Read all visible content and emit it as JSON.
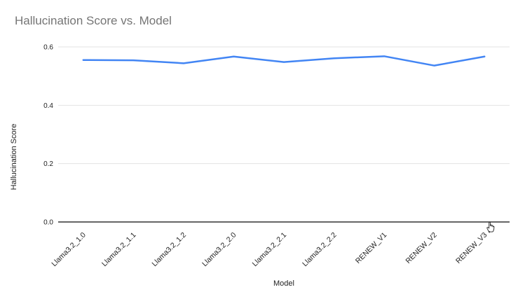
{
  "chart_data": {
    "type": "line",
    "title": "Hallucination Score vs. Model",
    "xlabel": "Model",
    "ylabel": "Hallucination Score",
    "categories": [
      "Llama3.2_1.0",
      "Llama3.2_1.1",
      "Llama3.2_1.2",
      "Llama3.2_2.0",
      "Llama3.2_2.1",
      "Llama3.2_2.2",
      "RENEW_V1",
      "RENEW_V2",
      "RENEW_V3"
    ],
    "series": [
      {
        "name": "Hallucination Score",
        "values": [
          0.555,
          0.554,
          0.544,
          0.567,
          0.548,
          0.561,
          0.568,
          0.536,
          0.567
        ]
      }
    ],
    "ylim": [
      0,
      0.6
    ],
    "yticks": [
      0.0,
      0.2,
      0.4,
      0.6
    ],
    "ytick_decimals": 1,
    "grid": "horizontal",
    "legend": "none",
    "colors": {
      "series": "#4285f4",
      "gridline": "#e3e3e3",
      "axis_line": "#333333",
      "title": "#757575",
      "tick_label": "#222222",
      "background": "#ffffff"
    }
  },
  "cursor": {
    "icon": "hand-pointer-cursor"
  }
}
